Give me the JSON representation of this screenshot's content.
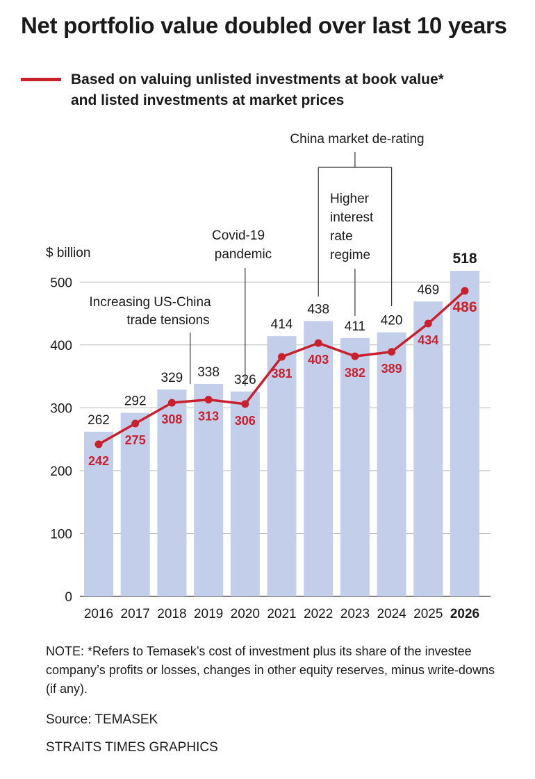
{
  "header": {
    "title": "Net portfolio value doubled over last 10 years"
  },
  "legend": {
    "line1": "Based on valuing unlisted investments at book value*",
    "line2": "and listed investments at market prices"
  },
  "colors": {
    "bar": "#c3cfea",
    "line": "#c8202d",
    "grid": "#b9b9b9",
    "text": "#1a1a1a"
  },
  "chart_data": {
    "type": "bar",
    "unit_label": "$ billion",
    "categories": [
      "2016",
      "2017",
      "2018",
      "2019",
      "2020",
      "2021",
      "2022",
      "2023",
      "2024",
      "2025",
      "2026"
    ],
    "ylim": [
      0,
      520
    ],
    "yticks": [
      0,
      100,
      200,
      300,
      400,
      500
    ],
    "grid": true,
    "series": [
      {
        "type": "bar",
        "values": [
          262,
          292,
          329,
          338,
          326,
          414,
          438,
          411,
          420,
          469,
          518
        ]
      },
      {
        "name": "Based on valuing unlisted investments at book value* and listed investments at market prices",
        "type": "line",
        "values": [
          242,
          275,
          308,
          313,
          306,
          381,
          403,
          382,
          389,
          434,
          486
        ]
      }
    ],
    "highlight_category": "2026",
    "annotations": [
      {
        "lines": [
          "Increasing US-China",
          "trade tensions"
        ],
        "category": "2018.5"
      },
      {
        "lines": [
          "Covid-19",
          "pandemic"
        ],
        "category": "2020"
      },
      {
        "lines": [
          "China market de-rating"
        ],
        "categories": [
          "2022",
          "2024"
        ]
      },
      {
        "lines": [
          "Higher",
          "interest",
          "rate",
          "regime"
        ],
        "category": "2023"
      }
    ]
  },
  "footer": {
    "note": "NOTE: *Refers to Temasek’s cost of investment plus its share of the investee company’s profits or losses, changes in other equity reserves, minus write-downs (if any).",
    "source": "Source: TEMASEK",
    "credit": "STRAITS TIMES GRAPHICS"
  }
}
